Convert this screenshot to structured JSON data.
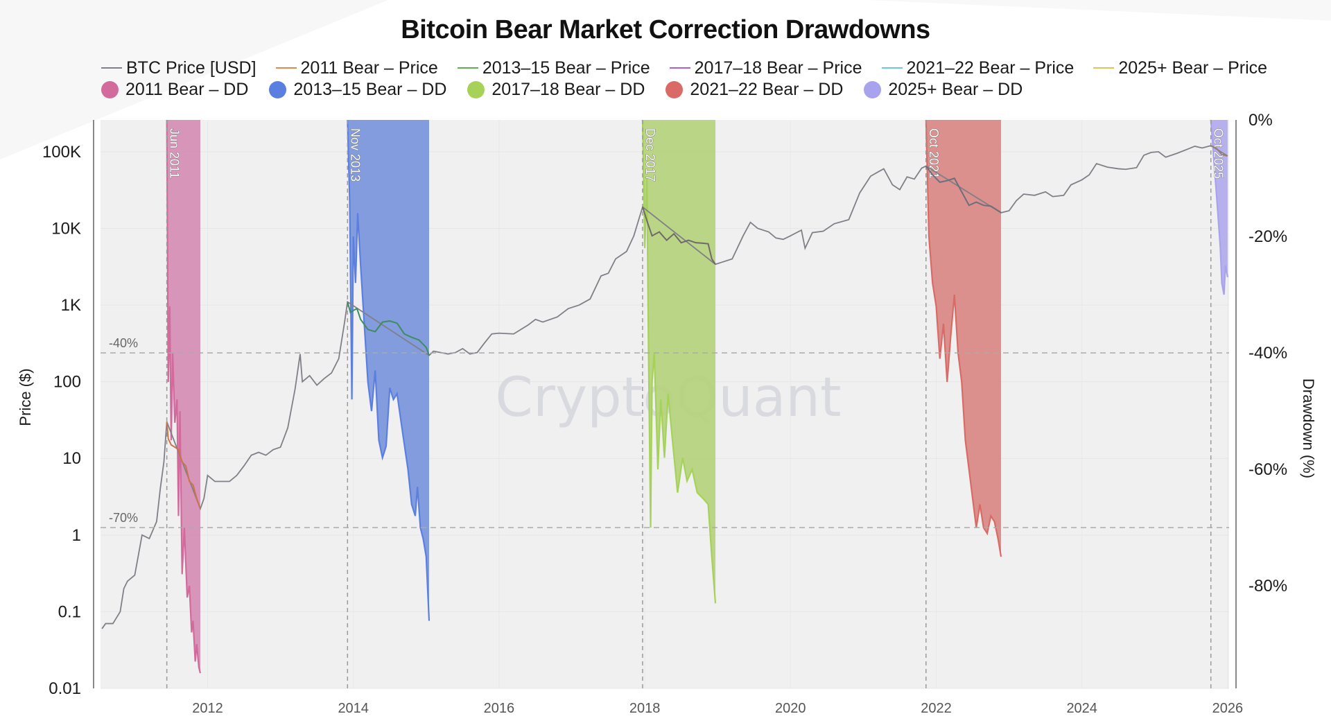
{
  "chart_data": {
    "type": "line",
    "title": "Bitcoin Bear Market Correction Drawdowns",
    "watermark": "CryptoQuant",
    "xlabel": "",
    "ylabel": "Price ($)",
    "y2label": "Drawdown (%)",
    "yscale": "log",
    "xlim": [
      2010.53,
      2026.02
    ],
    "ylim": [
      0.01,
      260000
    ],
    "y2lim": [
      -97.6,
      0
    ],
    "x_ticks": [
      "2012",
      "2014",
      "2016",
      "2018",
      "2020",
      "2022",
      "2024",
      "2026"
    ],
    "x_tick_values": [
      2012,
      2014,
      2016,
      2018,
      2020,
      2022,
      2024,
      2026
    ],
    "y_ticks": [
      "0.01",
      "0.1",
      "1",
      "10",
      "100",
      "1K",
      "10K",
      "100K"
    ],
    "y_tick_values": [
      0.01,
      0.1,
      1,
      10,
      100,
      1000,
      10000,
      100000
    ],
    "y2_ticks": [
      "0%",
      "-20%",
      "-40%",
      "-60%",
      "-80%"
    ],
    "y2_tick_values": [
      0,
      -20,
      -40,
      -60,
      -80
    ],
    "grid": true,
    "legend_position": "top",
    "legend": [
      {
        "label": "BTC Price [USD]",
        "kind": "line",
        "color": "#7f7f87"
      },
      {
        "label": "2011 Bear – Price",
        "kind": "line",
        "color": "#e0894a"
      },
      {
        "label": "2013–15 Bear – Price",
        "kind": "line",
        "color": "#5fae4e"
      },
      {
        "label": "2017–18 Bear – Price",
        "kind": "line",
        "color": "#b05cd6"
      },
      {
        "label": "2021–22 Bear – Price",
        "kind": "line",
        "color": "#6fc6dc"
      },
      {
        "label": "2025+ Bear – Price",
        "kind": "line",
        "color": "#e6c15a"
      },
      {
        "label": "2011 Bear – DD",
        "kind": "dot",
        "color": "#d26b9b"
      },
      {
        "label": "2013–15 Bear – DD",
        "kind": "dot",
        "color": "#5b7fe0"
      },
      {
        "label": "2017–18 Bear – DD",
        "kind": "dot",
        "color": "#a6d25a"
      },
      {
        "label": "2021–22 Bear – DD",
        "kind": "dot",
        "color": "#d96a66"
      },
      {
        "label": "2025+ Bear – DD",
        "kind": "dot",
        "color": "#a9a3ee"
      }
    ],
    "reference_lines": [
      {
        "label": "-40%",
        "value": -40
      },
      {
        "label": "-70%",
        "value": -70
      }
    ],
    "bear_markets": [
      {
        "name": "2011 Bear",
        "label": "Jun 2011",
        "start": 2011.44,
        "end": 2011.9,
        "color": "#d26b9b",
        "fill": "#d48fb5",
        "dd": [
          [
            2011.44,
            0
          ],
          [
            2011.46,
            -45
          ],
          [
            2011.48,
            -32
          ],
          [
            2011.5,
            -55
          ],
          [
            2011.52,
            -40
          ],
          [
            2011.55,
            -52
          ],
          [
            2011.58,
            -48
          ],
          [
            2011.6,
            -68
          ],
          [
            2011.62,
            -50
          ],
          [
            2011.65,
            -78
          ],
          [
            2011.68,
            -70
          ],
          [
            2011.72,
            -82
          ],
          [
            2011.75,
            -80
          ],
          [
            2011.78,
            -88
          ],
          [
            2011.8,
            -86
          ],
          [
            2011.83,
            -93
          ],
          [
            2011.85,
            -90
          ],
          [
            2011.88,
            -94
          ],
          [
            2011.9,
            -95
          ]
        ],
        "price": [
          [
            2011.44,
            30
          ],
          [
            2011.46,
            18
          ],
          [
            2011.5,
            15
          ],
          [
            2011.55,
            14
          ],
          [
            2011.6,
            13
          ],
          [
            2011.65,
            9
          ],
          [
            2011.7,
            8
          ],
          [
            2011.75,
            5
          ],
          [
            2011.8,
            4.5
          ],
          [
            2011.85,
            3
          ],
          [
            2011.9,
            2.2
          ]
        ]
      },
      {
        "name": "2013–15 Bear",
        "label": "Nov 2013",
        "start": 2013.92,
        "end": 2015.04,
        "color": "#5b7fe0",
        "fill": "#7b97dc",
        "dd": [
          [
            2013.92,
            0
          ],
          [
            2013.95,
            -14
          ],
          [
            2013.98,
            -48
          ],
          [
            2014.0,
            -20
          ],
          [
            2014.03,
            -28
          ],
          [
            2014.06,
            -16
          ],
          [
            2014.1,
            -25
          ],
          [
            2014.15,
            -35
          ],
          [
            2014.2,
            -45
          ],
          [
            2014.25,
            -50
          ],
          [
            2014.3,
            -43
          ],
          [
            2014.35,
            -55
          ],
          [
            2014.4,
            -58
          ],
          [
            2014.45,
            -56
          ],
          [
            2014.5,
            -46
          ],
          [
            2014.55,
            -48
          ],
          [
            2014.6,
            -47
          ],
          [
            2014.68,
            -54
          ],
          [
            2014.75,
            -60
          ],
          [
            2014.8,
            -66
          ],
          [
            2014.85,
            -68
          ],
          [
            2014.88,
            -63
          ],
          [
            2014.92,
            -70
          ],
          [
            2014.96,
            -72
          ],
          [
            2015.0,
            -75
          ],
          [
            2015.04,
            -86
          ]
        ],
        "price": [
          [
            2013.92,
            1100
          ],
          [
            2013.96,
            800
          ],
          [
            2014.0,
            850
          ],
          [
            2014.05,
            900
          ],
          [
            2014.1,
            650
          ],
          [
            2014.2,
            480
          ],
          [
            2014.3,
            450
          ],
          [
            2014.4,
            600
          ],
          [
            2014.5,
            620
          ],
          [
            2014.6,
            580
          ],
          [
            2014.7,
            420
          ],
          [
            2014.8,
            380
          ],
          [
            2014.9,
            350
          ],
          [
            2015.0,
            280
          ],
          [
            2015.04,
            220
          ]
        ]
      },
      {
        "name": "2017–18 Bear",
        "label": "Dec 2017",
        "start": 2017.97,
        "end": 2018.97,
        "color": "#a6d25a",
        "fill": "#b6d37e",
        "dd": [
          [
            2017.97,
            0
          ],
          [
            2018.0,
            -22
          ],
          [
            2018.03,
            -10
          ],
          [
            2018.05,
            -38
          ],
          [
            2018.08,
            -70
          ],
          [
            2018.1,
            -45
          ],
          [
            2018.13,
            -40
          ],
          [
            2018.18,
            -60
          ],
          [
            2018.22,
            -48
          ],
          [
            2018.27,
            -58
          ],
          [
            2018.32,
            -47
          ],
          [
            2018.38,
            -55
          ],
          [
            2018.45,
            -64
          ],
          [
            2018.52,
            -58
          ],
          [
            2018.58,
            -62
          ],
          [
            2018.65,
            -60
          ],
          [
            2018.72,
            -64
          ],
          [
            2018.8,
            -65
          ],
          [
            2018.87,
            -66
          ],
          [
            2018.92,
            -75
          ],
          [
            2018.97,
            -83
          ]
        ],
        "price": [
          [
            2017.97,
            19000
          ],
          [
            2018.05,
            11000
          ],
          [
            2018.1,
            8000
          ],
          [
            2018.2,
            9000
          ],
          [
            2018.3,
            7000
          ],
          [
            2018.4,
            8500
          ],
          [
            2018.5,
            6500
          ],
          [
            2018.6,
            7000
          ],
          [
            2018.7,
            6500
          ],
          [
            2018.8,
            6400
          ],
          [
            2018.87,
            6300
          ],
          [
            2018.92,
            4000
          ],
          [
            2018.97,
            3400
          ]
        ]
      },
      {
        "name": "2021–22 Bear",
        "label": "Oct 2021",
        "start": 2021.86,
        "end": 2022.89,
        "color": "#d96a66",
        "fill": "#d98a88",
        "dd": [
          [
            2021.86,
            0
          ],
          [
            2021.9,
            -20
          ],
          [
            2021.95,
            -28
          ],
          [
            2022.0,
            -32
          ],
          [
            2022.05,
            -41
          ],
          [
            2022.1,
            -35
          ],
          [
            2022.15,
            -45
          ],
          [
            2022.2,
            -37
          ],
          [
            2022.25,
            -30
          ],
          [
            2022.3,
            -40
          ],
          [
            2022.35,
            -45
          ],
          [
            2022.4,
            -55
          ],
          [
            2022.45,
            -60
          ],
          [
            2022.5,
            -65
          ],
          [
            2022.55,
            -70
          ],
          [
            2022.6,
            -66
          ],
          [
            2022.65,
            -70
          ],
          [
            2022.7,
            -71
          ],
          [
            2022.75,
            -68
          ],
          [
            2022.8,
            -69
          ],
          [
            2022.85,
            -72
          ],
          [
            2022.89,
            -75
          ]
        ],
        "price": [
          [
            2021.86,
            65000
          ],
          [
            2021.95,
            50000
          ],
          [
            2022.05,
            40000
          ],
          [
            2022.15,
            42000
          ],
          [
            2022.25,
            45000
          ],
          [
            2022.35,
            30000
          ],
          [
            2022.45,
            20000
          ],
          [
            2022.55,
            22000
          ],
          [
            2022.65,
            20000
          ],
          [
            2022.75,
            19500
          ],
          [
            2022.85,
            17000
          ],
          [
            2022.89,
            16000
          ]
        ]
      },
      {
        "name": "2025+ Bear",
        "label": "Oct 2025",
        "start": 2025.77,
        "end": 2026.0,
        "color": "#a9a3ee",
        "fill": "#b2acec",
        "dd": [
          [
            2025.77,
            0
          ],
          [
            2025.8,
            -5
          ],
          [
            2025.83,
            -10
          ],
          [
            2025.86,
            -15
          ],
          [
            2025.9,
            -22
          ],
          [
            2025.92,
            -28
          ],
          [
            2025.95,
            -30
          ],
          [
            2025.97,
            -25
          ],
          [
            2026.0,
            -27
          ]
        ],
        "price": [
          [
            2025.77,
            120000
          ],
          [
            2025.85,
            110000
          ],
          [
            2025.92,
            92000
          ],
          [
            2026.0,
            88000
          ]
        ]
      }
    ],
    "btc_price": [
      [
        2010.55,
        0.06
      ],
      [
        2010.6,
        0.07
      ],
      [
        2010.7,
        0.07
      ],
      [
        2010.8,
        0.1
      ],
      [
        2010.85,
        0.2
      ],
      [
        2010.9,
        0.25
      ],
      [
        2011.0,
        0.3
      ],
      [
        2011.1,
        1
      ],
      [
        2011.2,
        0.9
      ],
      [
        2011.3,
        1.5
      ],
      [
        2011.35,
        4
      ],
      [
        2011.4,
        9
      ],
      [
        2011.44,
        30
      ],
      [
        2011.9,
        2.2
      ],
      [
        2011.95,
        3
      ],
      [
        2012.0,
        6
      ],
      [
        2012.1,
        5
      ],
      [
        2012.2,
        5
      ],
      [
        2012.3,
        5
      ],
      [
        2012.4,
        6
      ],
      [
        2012.5,
        8
      ],
      [
        2012.6,
        11
      ],
      [
        2012.7,
        12
      ],
      [
        2012.8,
        11
      ],
      [
        2012.9,
        13
      ],
      [
        2013.0,
        14
      ],
      [
        2013.1,
        25
      ],
      [
        2013.2,
        80
      ],
      [
        2013.27,
        230
      ],
      [
        2013.3,
        100
      ],
      [
        2013.4,
        120
      ],
      [
        2013.5,
        90
      ],
      [
        2013.6,
        110
      ],
      [
        2013.7,
        130
      ],
      [
        2013.8,
        200
      ],
      [
        2013.88,
        600
      ],
      [
        2013.92,
        1100
      ],
      [
        2015.04,
        220
      ],
      [
        2015.1,
        250
      ],
      [
        2015.2,
        240
      ],
      [
        2015.3,
        230
      ],
      [
        2015.4,
        240
      ],
      [
        2015.5,
        270
      ],
      [
        2015.6,
        230
      ],
      [
        2015.7,
        240
      ],
      [
        2015.8,
        320
      ],
      [
        2015.9,
        420
      ],
      [
        2016.0,
        430
      ],
      [
        2016.2,
        420
      ],
      [
        2016.4,
        550
      ],
      [
        2016.5,
        650
      ],
      [
        2016.6,
        600
      ],
      [
        2016.8,
        700
      ],
      [
        2016.95,
        900
      ],
      [
        2017.1,
        1000
      ],
      [
        2017.25,
        1200
      ],
      [
        2017.4,
        2400
      ],
      [
        2017.5,
        2600
      ],
      [
        2017.6,
        4000
      ],
      [
        2017.75,
        5000
      ],
      [
        2017.85,
        8000
      ],
      [
        2017.97,
        19000
      ],
      [
        2018.97,
        3400
      ],
      [
        2019.05,
        3600
      ],
      [
        2019.2,
        4000
      ],
      [
        2019.35,
        8000
      ],
      [
        2019.45,
        12000
      ],
      [
        2019.55,
        10000
      ],
      [
        2019.7,
        9000
      ],
      [
        2019.8,
        7500
      ],
      [
        2019.9,
        7200
      ],
      [
        2020.0,
        8000
      ],
      [
        2020.15,
        9500
      ],
      [
        2020.2,
        5500
      ],
      [
        2020.3,
        8800
      ],
      [
        2020.45,
        9200
      ],
      [
        2020.6,
        11500
      ],
      [
        2020.8,
        13000
      ],
      [
        2020.95,
        29000
      ],
      [
        2021.1,
        48000
      ],
      [
        2021.28,
        60000
      ],
      [
        2021.4,
        37000
      ],
      [
        2021.5,
        32000
      ],
      [
        2021.6,
        47000
      ],
      [
        2021.7,
        44000
      ],
      [
        2021.8,
        61000
      ],
      [
        2021.86,
        65000
      ],
      [
        2022.89,
        16000
      ],
      [
        2023.0,
        17000
      ],
      [
        2023.1,
        23000
      ],
      [
        2023.2,
        28000
      ],
      [
        2023.35,
        27000
      ],
      [
        2023.5,
        30000
      ],
      [
        2023.6,
        26000
      ],
      [
        2023.75,
        27000
      ],
      [
        2023.85,
        37000
      ],
      [
        2024.0,
        43000
      ],
      [
        2024.1,
        50000
      ],
      [
        2024.2,
        70000
      ],
      [
        2024.35,
        63000
      ],
      [
        2024.5,
        60000
      ],
      [
        2024.6,
        59000
      ],
      [
        2024.75,
        62000
      ],
      [
        2024.85,
        90000
      ],
      [
        2024.95,
        98000
      ],
      [
        2025.05,
        100000
      ],
      [
        2025.15,
        85000
      ],
      [
        2025.3,
        95000
      ],
      [
        2025.45,
        108000
      ],
      [
        2025.55,
        118000
      ],
      [
        2025.65,
        112000
      ],
      [
        2025.77,
        120000
      ],
      [
        2026.0,
        88000
      ]
    ]
  }
}
